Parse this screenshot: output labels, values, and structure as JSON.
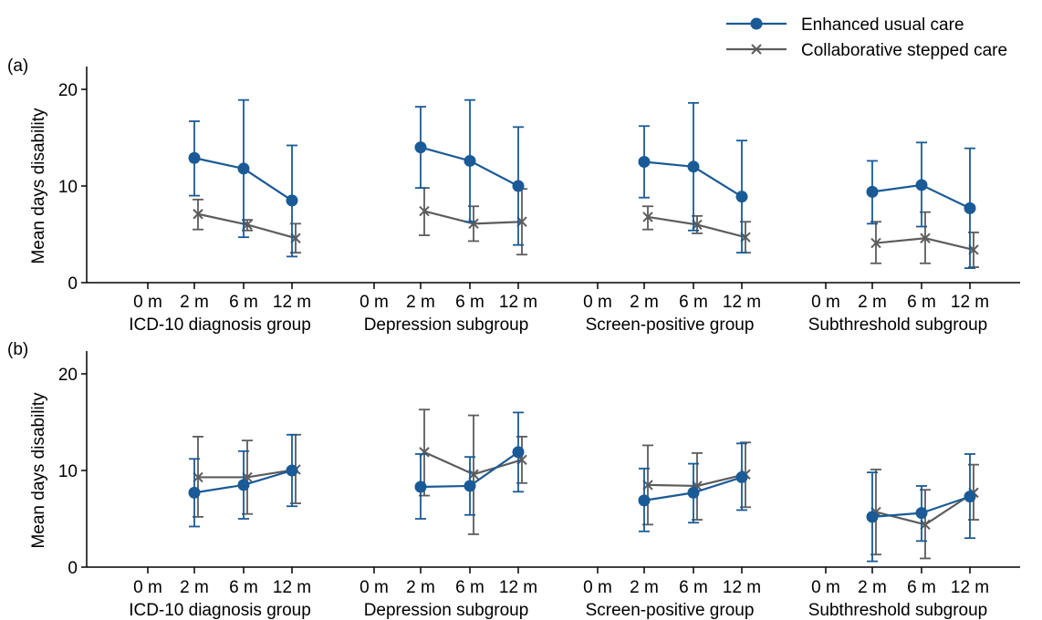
{
  "legend": {
    "placement": "top-right",
    "entries": [
      {
        "label": "Enhanced usual care",
        "color": "#1a5a96",
        "marker": "circle"
      },
      {
        "label": "Collaborative stepped care",
        "color": "#5c5c5c",
        "marker": "x"
      }
    ]
  },
  "chart_data": [
    {
      "type": "line",
      "panel_label": "(a)",
      "ylabel": "Mean days disability",
      "ylim": [
        0,
        22
      ],
      "yticks": [
        0,
        10,
        20
      ],
      "x_ticks": [
        "0 m",
        "2 m",
        "6 m",
        "12 m"
      ],
      "group_labels": [
        "ICD-10 diagnosis group",
        "Depression subgroup",
        "Screen-positive group",
        "Subthreshold subgroup"
      ],
      "groups": [
        {
          "name": "ICD-10 diagnosis group",
          "series": [
            {
              "legend_index": 0,
              "points": [
                {
                  "x": "2 m",
                  "y": 12.9,
                  "lo": 9.0,
                  "hi": 16.7
                },
                {
                  "x": "6 m",
                  "y": 11.8,
                  "lo": 4.7,
                  "hi": 18.9
                },
                {
                  "x": "12 m",
                  "y": 8.5,
                  "lo": 2.7,
                  "hi": 14.2
                }
              ]
            },
            {
              "legend_index": 1,
              "points": [
                {
                  "x": "2 m",
                  "y": 7.1,
                  "lo": 5.5,
                  "hi": 8.6
                },
                {
                  "x": "6 m",
                  "y": 6.0,
                  "lo": 5.4,
                  "hi": 6.5
                },
                {
                  "x": "12 m",
                  "y": 4.6,
                  "lo": 3.1,
                  "hi": 6.1
                }
              ]
            }
          ]
        },
        {
          "name": "Depression subgroup",
          "series": [
            {
              "legend_index": 0,
              "points": [
                {
                  "x": "2 m",
                  "y": 14.0,
                  "lo": 9.8,
                  "hi": 18.2
                },
                {
                  "x": "6 m",
                  "y": 12.6,
                  "lo": 6.3,
                  "hi": 18.9
                },
                {
                  "x": "12 m",
                  "y": 10.0,
                  "lo": 3.9,
                  "hi": 16.1
                }
              ]
            },
            {
              "legend_index": 1,
              "points": [
                {
                  "x": "2 m",
                  "y": 7.4,
                  "lo": 4.9,
                  "hi": 9.8
                },
                {
                  "x": "6 m",
                  "y": 6.1,
                  "lo": 4.3,
                  "hi": 7.9
                },
                {
                  "x": "12 m",
                  "y": 6.3,
                  "lo": 2.9,
                  "hi": 9.7
                }
              ]
            }
          ]
        },
        {
          "name": "Screen-positive group",
          "series": [
            {
              "legend_index": 0,
              "points": [
                {
                  "x": "2 m",
                  "y": 12.5,
                  "lo": 8.8,
                  "hi": 16.2
                },
                {
                  "x": "6 m",
                  "y": 12.0,
                  "lo": 5.4,
                  "hi": 18.6
                },
                {
                  "x": "12 m",
                  "y": 8.9,
                  "lo": 3.1,
                  "hi": 14.7
                }
              ]
            },
            {
              "legend_index": 1,
              "points": [
                {
                  "x": "2 m",
                  "y": 6.8,
                  "lo": 5.5,
                  "hi": 7.9
                },
                {
                  "x": "6 m",
                  "y": 6.0,
                  "lo": 5.1,
                  "hi": 6.9
                },
                {
                  "x": "12 m",
                  "y": 4.7,
                  "lo": 3.1,
                  "hi": 6.3
                }
              ]
            }
          ]
        },
        {
          "name": "Subthreshold subgroup",
          "series": [
            {
              "legend_index": 0,
              "points": [
                {
                  "x": "2 m",
                  "y": 9.4,
                  "lo": 6.1,
                  "hi": 12.6
                },
                {
                  "x": "6 m",
                  "y": 10.1,
                  "lo": 5.8,
                  "hi": 14.5
                },
                {
                  "x": "12 m",
                  "y": 7.7,
                  "lo": 1.5,
                  "hi": 13.9
                }
              ]
            },
            {
              "legend_index": 1,
              "points": [
                {
                  "x": "2 m",
                  "y": 4.1,
                  "lo": 2.0,
                  "hi": 6.3
                },
                {
                  "x": "6 m",
                  "y": 4.6,
                  "lo": 2.0,
                  "hi": 7.3
                },
                {
                  "x": "12 m",
                  "y": 3.4,
                  "lo": 1.6,
                  "hi": 5.2
                }
              ]
            }
          ]
        }
      ]
    },
    {
      "type": "line",
      "panel_label": "(b)",
      "ylabel": "Mean days disability",
      "ylim": [
        0,
        22
      ],
      "yticks": [
        0,
        10,
        20
      ],
      "x_ticks": [
        "0 m",
        "2 m",
        "6 m",
        "12 m"
      ],
      "group_labels": [
        "ICD-10 diagnosis group",
        "Depression subgroup",
        "Screen-positive group",
        "Subthreshold subgroup"
      ],
      "groups": [
        {
          "name": "ICD-10 diagnosis group",
          "series": [
            {
              "legend_index": 0,
              "points": [
                {
                  "x": "2 m",
                  "y": 7.7,
                  "lo": 4.2,
                  "hi": 11.2
                },
                {
                  "x": "6 m",
                  "y": 8.5,
                  "lo": 5.0,
                  "hi": 12.0
                },
                {
                  "x": "12 m",
                  "y": 10.0,
                  "lo": 6.3,
                  "hi": 13.7
                }
              ]
            },
            {
              "legend_index": 1,
              "points": [
                {
                  "x": "2 m",
                  "y": 9.3,
                  "lo": 5.2,
                  "hi": 13.5
                },
                {
                  "x": "6 m",
                  "y": 9.3,
                  "lo": 5.5,
                  "hi": 13.1
                },
                {
                  "x": "12 m",
                  "y": 10.1,
                  "lo": 6.6,
                  "hi": 13.7
                }
              ]
            }
          ]
        },
        {
          "name": "Depression subgroup",
          "series": [
            {
              "legend_index": 0,
              "points": [
                {
                  "x": "2 m",
                  "y": 8.3,
                  "lo": 5.0,
                  "hi": 11.7
                },
                {
                  "x": "6 m",
                  "y": 8.4,
                  "lo": 5.4,
                  "hi": 11.4
                },
                {
                  "x": "12 m",
                  "y": 11.9,
                  "lo": 7.8,
                  "hi": 16.0
                }
              ]
            },
            {
              "legend_index": 1,
              "points": [
                {
                  "x": "2 m",
                  "y": 11.9,
                  "lo": 7.4,
                  "hi": 16.3
                },
                {
                  "x": "6 m",
                  "y": 9.6,
                  "lo": 3.4,
                  "hi": 15.7
                },
                {
                  "x": "12 m",
                  "y": 11.1,
                  "lo": 8.7,
                  "hi": 13.5
                }
              ]
            }
          ]
        },
        {
          "name": "Screen-positive group",
          "series": [
            {
              "legend_index": 0,
              "points": [
                {
                  "x": "2 m",
                  "y": 6.9,
                  "lo": 3.7,
                  "hi": 10.2
                },
                {
                  "x": "6 m",
                  "y": 7.7,
                  "lo": 4.6,
                  "hi": 10.7
                },
                {
                  "x": "12 m",
                  "y": 9.3,
                  "lo": 5.9,
                  "hi": 12.8
                }
              ]
            },
            {
              "legend_index": 1,
              "points": [
                {
                  "x": "2 m",
                  "y": 8.5,
                  "lo": 4.4,
                  "hi": 12.6
                },
                {
                  "x": "6 m",
                  "y": 8.4,
                  "lo": 4.9,
                  "hi": 11.8
                },
                {
                  "x": "12 m",
                  "y": 9.6,
                  "lo": 6.2,
                  "hi": 12.9
                }
              ]
            }
          ]
        },
        {
          "name": "Subthreshold subgroup",
          "series": [
            {
              "legend_index": 0,
              "points": [
                {
                  "x": "2 m",
                  "y": 5.2,
                  "lo": 0.6,
                  "hi": 9.8
                },
                {
                  "x": "6 m",
                  "y": 5.6,
                  "lo": 2.7,
                  "hi": 8.4
                },
                {
                  "x": "12 m",
                  "y": 7.3,
                  "lo": 3.0,
                  "hi": 11.7
                }
              ]
            },
            {
              "legend_index": 1,
              "points": [
                {
                  "x": "2 m",
                  "y": 5.7,
                  "lo": 1.3,
                  "hi": 10.1
                },
                {
                  "x": "6 m",
                  "y": 4.4,
                  "lo": 0.9,
                  "hi": 8.0
                },
                {
                  "x": "12 m",
                  "y": 7.7,
                  "lo": 4.9,
                  "hi": 10.6
                }
              ]
            }
          ]
        }
      ]
    }
  ]
}
